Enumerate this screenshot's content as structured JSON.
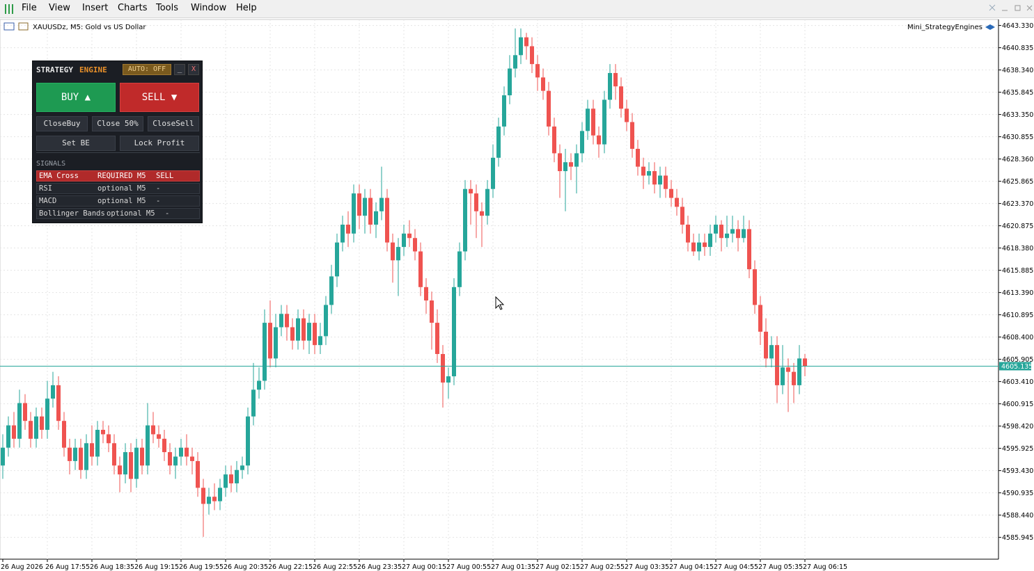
{
  "menu": [
    "File",
    "View",
    "Insert",
    "Charts",
    "Tools",
    "Window",
    "Help"
  ],
  "chart_header": {
    "symbol": "XAUUSDz, M5:  Gold vs US Dollar",
    "indicator": "Mini_StrategyEngines"
  },
  "panel": {
    "title_a": "STRATEGY",
    "title_b": "ENGINE",
    "auto": "AUTO: OFF",
    "minimize": "_",
    "close": "X",
    "buy": "BUY ▲",
    "sell": "SELL ▼",
    "close_buy": "CloseBuy",
    "close_half": "Close 50%",
    "close_sell": "CloseSell",
    "set_be": "Set BE",
    "lock_profit": "Lock Profit",
    "signals": {
      "title": "SIGNALS",
      "rows": [
        [
          "EMA Cross",
          "REQUIRED M5",
          "SELL"
        ],
        [
          "RSI",
          "optional M5",
          "-"
        ],
        [
          "MACD",
          "optional M5",
          "-"
        ],
        [
          "Bollinger Bands",
          "optional M5",
          "-"
        ]
      ]
    }
  },
  "chart_data": {
    "type": "candlestick",
    "up_color": "#26a69a",
    "down_color": "#ef5350",
    "grid": true,
    "categories": [
      "26 Aug 2026",
      null,
      null,
      null,
      null,
      null,
      null,
      null,
      "26 Aug 17:55",
      null,
      null,
      null,
      null,
      null,
      null,
      null,
      "26 Aug 18:35",
      null,
      null,
      null,
      null,
      null,
      null,
      null,
      "26 Aug 19:15",
      null,
      null,
      null,
      null,
      null,
      null,
      null,
      "26 Aug 19:55",
      null,
      null,
      null,
      null,
      null,
      null,
      null,
      "26 Aug 20:35",
      null,
      null,
      null,
      null,
      null,
      null,
      null,
      "26 Aug 22:15",
      null,
      null,
      null,
      null,
      null,
      null,
      null,
      "26 Aug 22:55",
      null,
      null,
      null,
      null,
      null,
      null,
      null,
      "26 Aug 23:35",
      null,
      null,
      null,
      null,
      null,
      null,
      null,
      "27 Aug 00:15",
      null,
      null,
      null,
      null,
      null,
      null,
      null,
      "27 Aug 00:55",
      null,
      null,
      null,
      null,
      null,
      null,
      null,
      "27 Aug 01:35",
      null,
      null,
      null,
      null,
      null,
      null,
      null,
      "27 Aug 02:15",
      null,
      null,
      null,
      null,
      null,
      null,
      null,
      "27 Aug 02:55",
      null,
      null,
      null,
      null,
      null,
      null,
      null,
      "27 Aug 03:35",
      null,
      null,
      null,
      null,
      null,
      null,
      null,
      "27 Aug 04:15",
      null,
      null,
      null,
      null,
      null,
      null,
      null,
      "27 Aug 04:55",
      null,
      null,
      null,
      null,
      null,
      null,
      null,
      "27 Aug 05:35",
      null,
      null,
      null,
      null,
      null,
      null,
      null,
      "27 Aug 06:15"
    ],
    "open": [
      4594,
      4596,
      4598.5,
      4597,
      4601,
      4599,
      4597,
      4599.5,
      4598,
      4601.5,
      4603,
      4599,
      4596,
      4594.5,
      4596,
      4593.5,
      4596.5,
      4595,
      4598,
      4597.5,
      4596.5,
      4594,
      4593,
      4595.5,
      4592.5,
      4596,
      4594,
      4598.5,
      4597.5,
      4597,
      4595.5,
      4594,
      4595,
      4596,
      4595,
      4594.5,
      4591.5,
      4589.7,
      4590.5,
      4590,
      4591.5,
      4593,
      4592,
      4593.5,
      4594,
      4599.5,
      4602.5,
      4603.5,
      4610,
      4606,
      4609.5,
      4611,
      4609.5,
      4608,
      4610.5,
      4608,
      4610,
      4607.5,
      4608.5,
      4612,
      4615.2,
      4619,
      4621,
      4620,
      4624.5,
      4622,
      4624,
      4621,
      4622.5,
      4624,
      4619,
      4617,
      4618.5,
      4620,
      4619.5,
      4618,
      4614,
      4612.5,
      4610,
      4606.5,
      4603.3,
      4604,
      4614,
      4618,
      4625,
      4624.5,
      4622.5,
      4622,
      4625,
      4628.5,
      4632,
      4635.5,
      4638.5,
      4640,
      4642,
      4641,
      4639,
      4637.5,
      4636,
      4632,
      4629,
      4627,
      4628,
      4627.5,
      4629,
      4631.5,
      4634,
      4631,
      4630,
      4635,
      4638,
      4636.5,
      4634,
      4632.5,
      4629.5,
      4627.5,
      4626.5,
      4627,
      4625.5,
      4626.5,
      4625,
      4624,
      4623,
      4621,
      4619,
      4618,
      4619,
      4618.5,
      4620,
      4621,
      4619.5,
      4620,
      4620.5,
      4619.5,
      4620.5,
      4616,
      4612,
      4609,
      4606,
      4607.5,
      4603,
      4605,
      4604.5,
      4603,
      4606
    ],
    "high": [
      4597.5,
      4599.5,
      4600,
      4602.5,
      4602,
      4600,
      4600.5,
      4600.5,
      4603.5,
      4604.5,
      4604,
      4600,
      4597,
      4597,
      4597,
      4597.5,
      4598.5,
      4599,
      4599,
      4598.5,
      4597.5,
      4595,
      4596.5,
      4596.5,
      4597,
      4597,
      4601,
      4600,
      4598.5,
      4598,
      4596.5,
      4596,
      4597,
      4597.5,
      4596,
      4595.5,
      4592.5,
      4591.5,
      4592,
      4592.5,
      4594,
      4594,
      4594.5,
      4595,
      4600.5,
      4605.5,
      4605,
      4611.5,
      4612.5,
      4611,
      4612,
      4612,
      4610.5,
      4611.5,
      4611.5,
      4611,
      4611,
      4610,
      4613,
      4616.5,
      4620,
      4622,
      4622.5,
      4625.5,
      4625.5,
      4625,
      4625,
      4623.5,
      4627.5,
      4625,
      4620,
      4619.5,
      4621,
      4621.5,
      4620.5,
      4619,
      4615,
      4613.5,
      4611.5,
      4607.5,
      4605,
      4615,
      4619,
      4626,
      4626,
      4625.5,
      4623.5,
      4626,
      4630,
      4633,
      4636.5,
      4640,
      4643,
      4643,
      4642.5,
      4642,
      4640,
      4638.5,
      4637,
      4633,
      4630,
      4629.5,
      4629,
      4630,
      4632.5,
      4635,
      4635,
      4632,
      4636,
      4639,
      4639,
      4637.5,
      4635,
      4633.5,
      4630.5,
      4628.5,
      4628,
      4628,
      4627.5,
      4627.5,
      4626,
      4625,
      4624,
      4622,
      4620,
      4620,
      4620,
      4621,
      4622,
      4621.5,
      4622,
      4622,
      4621.5,
      4622,
      4621.5,
      4617,
      4613,
      4610.5,
      4608.5,
      4608.5,
      4607.5,
      4606,
      4605.5,
      4607.5,
      4606.5
    ],
    "low": [
      4592.5,
      4595,
      4596,
      4596,
      4598,
      4596,
      4596,
      4597,
      4597,
      4600.5,
      4598,
      4595,
      4593,
      4593.5,
      4592.5,
      4592.5,
      4594,
      4594,
      4596.5,
      4595.5,
      4593,
      4591,
      4592,
      4591,
      4591.5,
      4593,
      4593,
      4596.5,
      4596,
      4594.5,
      4593,
      4592.5,
      4594,
      4594,
      4593,
      4590.5,
      4586,
      4588.5,
      4589,
      4589,
      4590.5,
      4591,
      4591,
      4592.5,
      4593,
      4598.5,
      4601.5,
      4602.5,
      4605,
      4605,
      4608.5,
      4608,
      4607,
      4607,
      4607,
      4606.5,
      4606.5,
      4606.5,
      4607.5,
      4611,
      4614,
      4618,
      4618.5,
      4619,
      4620.5,
      4620,
      4620,
      4619.5,
      4621.5,
      4618,
      4614.5,
      4613,
      4617.5,
      4618.5,
      4617,
      4613,
      4611,
      4607,
      4605.5,
      4600.5,
      4601.5,
      4603,
      4613,
      4617,
      4621,
      4619.5,
      4618.5,
      4621,
      4624,
      4627.5,
      4631,
      4634.5,
      4637.5,
      4639,
      4639.5,
      4638,
      4636,
      4635,
      4631,
      4628,
      4624,
      4622.5,
      4626,
      4624.5,
      4628,
      4630.5,
      4630,
      4628.5,
      4629,
      4634,
      4635,
      4633,
      4631.5,
      4628.5,
      4626.5,
      4625,
      4625.5,
      4624.5,
      4624,
      4624,
      4623,
      4622,
      4620,
      4618,
      4617.5,
      4617,
      4617.5,
      4617.5,
      4619,
      4618,
      4618.5,
      4619,
      4618,
      4619,
      4615,
      4611,
      4607.5,
      4605,
      4605,
      4601,
      4602,
      4600,
      4601,
      4602,
      4604
    ],
    "close": [
      4596,
      4598.5,
      4597,
      4601,
      4599,
      4597,
      4599.5,
      4598,
      4601.5,
      4603,
      4599,
      4596,
      4594.5,
      4596,
      4593.5,
      4596.5,
      4595,
      4598,
      4597.5,
      4596.5,
      4594,
      4593,
      4595.5,
      4592.5,
      4596,
      4594,
      4598.5,
      4597.5,
      4597,
      4595.5,
      4594,
      4595,
      4596,
      4595,
      4594.5,
      4591.5,
      4589.7,
      4590.5,
      4590,
      4591.5,
      4593,
      4592,
      4593.5,
      4594,
      4599.5,
      4602.5,
      4603.5,
      4610,
      4606,
      4609.5,
      4611,
      4609.5,
      4608,
      4610.5,
      4608,
      4610,
      4607.5,
      4608.5,
      4612,
      4615.2,
      4619,
      4621,
      4620,
      4624.5,
      4622,
      4624,
      4621,
      4622.5,
      4624,
      4619,
      4617,
      4618.5,
      4620,
      4619.5,
      4618,
      4614,
      4612.5,
      4610,
      4606.5,
      4603.3,
      4604,
      4614,
      4618,
      4625,
      4624.5,
      4622.5,
      4622,
      4625,
      4628.5,
      4632,
      4635.5,
      4638.5,
      4640,
      4642,
      4641,
      4639,
      4637.5,
      4636,
      4632,
      4629,
      4627,
      4628,
      4627.5,
      4629,
      4631.5,
      4634,
      4631,
      4630,
      4635,
      4638,
      4636.5,
      4634,
      4632.5,
      4629.5,
      4627.5,
      4626.5,
      4627,
      4625.5,
      4626.5,
      4625,
      4624,
      4623,
      4621,
      4619,
      4618,
      4619,
      4618.5,
      4620,
      4621,
      4619.5,
      4620,
      4620.5,
      4619.5,
      4620.5,
      4616,
      4612,
      4609,
      4606,
      4607.5,
      4603,
      4605,
      4604.5,
      4603,
      4606,
      4605.135
    ],
    "current_price": 4605.135,
    "current_color": "#26a69a",
    "ylim": [
      4583.5,
      4644.0
    ],
    "yticks": [
      {
        "value": 4643.33,
        "label": "4643.330"
      },
      4640.835,
      {
        "value": 4638.34,
        "label": "4638.340"
      },
      4635.845,
      {
        "value": 4633.35,
        "label": "4633.350"
      },
      4630.855,
      {
        "value": 4628.36,
        "label": "4628.360"
      },
      4625.865,
      {
        "value": 4623.37,
        "label": "4623.370"
      },
      4620.875,
      {
        "value": 4618.38,
        "label": "4618.380"
      },
      4615.885,
      {
        "value": 4613.39,
        "label": "4613.390"
      },
      4610.895,
      {
        "value": 4608.4,
        "label": "4608.400"
      },
      4605.905,
      {
        "value": 4603.41,
        "label": "4603.410"
      },
      4600.915,
      {
        "value": 4598.42,
        "label": "4598.420"
      },
      4595.925,
      {
        "value": 4593.43,
        "label": "4593.430"
      },
      4590.935,
      {
        "value": 4588.44,
        "label": "4588.440"
      },
      4585.945
    ]
  }
}
